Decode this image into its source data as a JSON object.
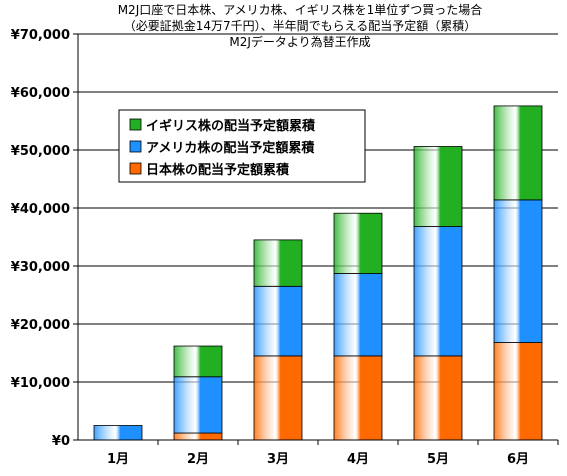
{
  "chart_data": {
    "type": "bar",
    "stacked": true,
    "title_lines": [
      "M2J口座で日本株、アメリカ株、イギリス株を1単位ずつ買った場合",
      "（必要証拠金14万7千円）、半年間でもらえる配当予定額（累積）",
      "M2Jデータより為替王作成"
    ],
    "categories": [
      "1月",
      "2月",
      "3月",
      "4月",
      "5月",
      "6月"
    ],
    "series": [
      {
        "name": "日本株の配当予定額累積",
        "color": "#ff6a00",
        "values": [
          0,
          1200,
          14500,
          14500,
          14500,
          16800
        ]
      },
      {
        "name": "アメリカ株の配当予定額累積",
        "color": "#1e90ff",
        "values": [
          2500,
          9700,
          12000,
          14200,
          22300,
          24600
        ]
      },
      {
        "name": "イギリス株の配当予定額累積",
        "color": "#22b022",
        "values": [
          0,
          5300,
          8000,
          10400,
          13800,
          16200
        ]
      }
    ],
    "legend_order": [
      2,
      1,
      0
    ],
    "legend_placement": "top-left",
    "ylim": [
      0,
      70000
    ],
    "y_ticks": [
      "¥0",
      "¥10,000",
      "¥20,000",
      "¥30,000",
      "¥40,000",
      "¥50,000",
      "¥60,000",
      "¥70,000"
    ],
    "grid": true
  }
}
